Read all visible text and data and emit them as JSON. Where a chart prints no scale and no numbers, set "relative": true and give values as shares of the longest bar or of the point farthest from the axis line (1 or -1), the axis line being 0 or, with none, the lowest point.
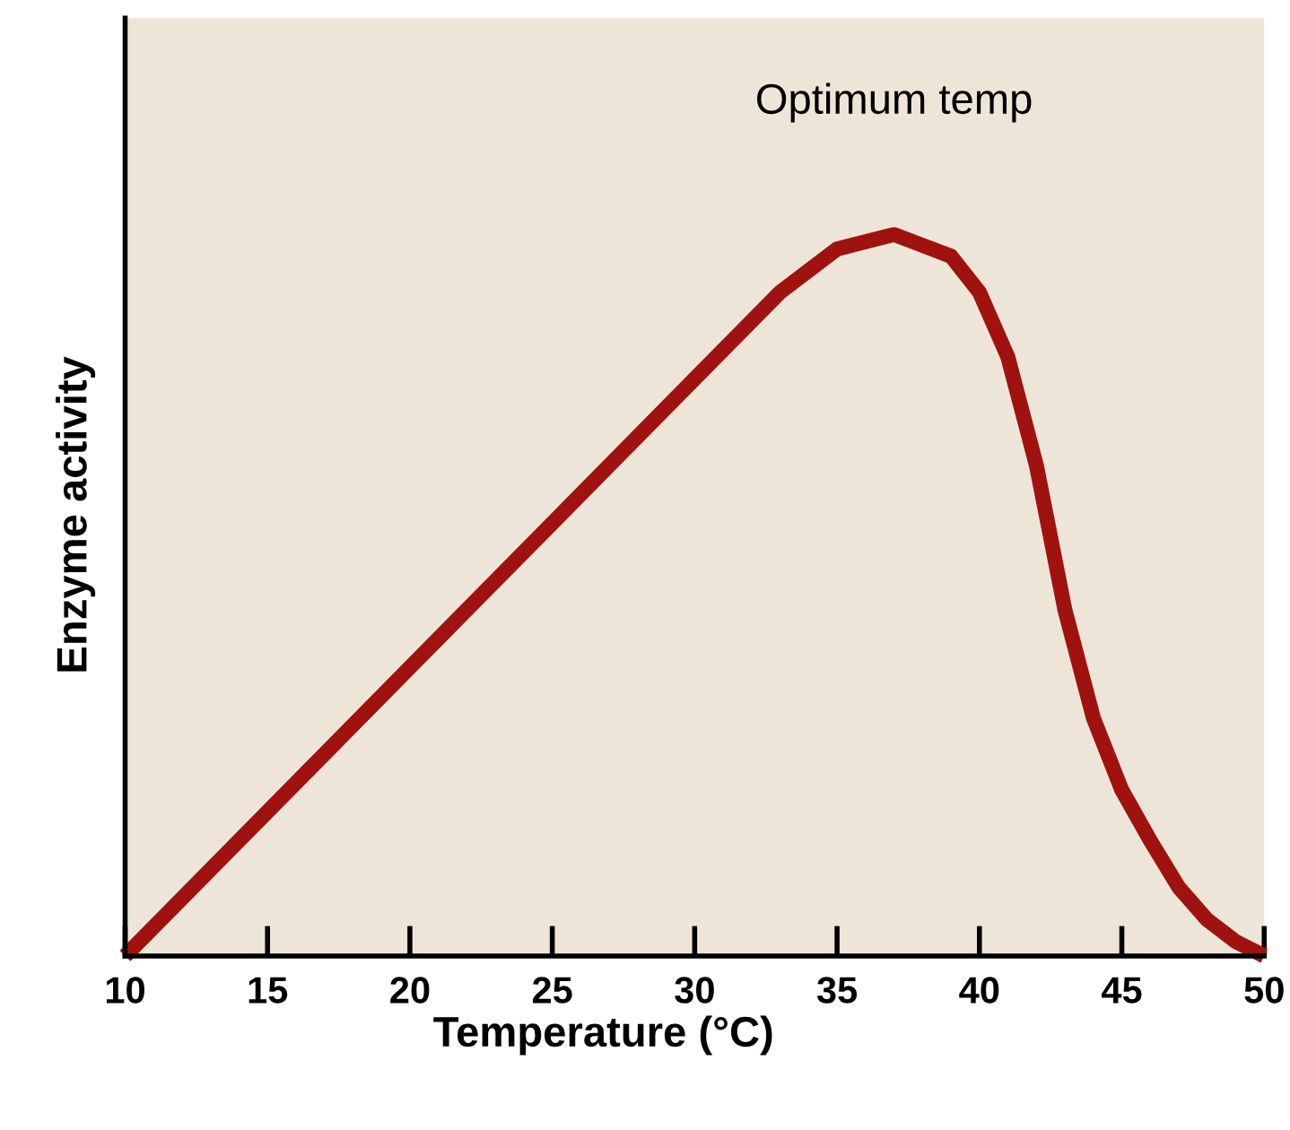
{
  "chart_data": {
    "type": "line",
    "relative": true,
    "xlabel": "Temperature (°C)",
    "ylabel": "Enzyme activity",
    "annotations": [
      {
        "text": "Optimum temp",
        "x": 37,
        "y": 1
      }
    ],
    "x": [
      10,
      15,
      20,
      25,
      30,
      33,
      35,
      37,
      39,
      40,
      41,
      42,
      43,
      44,
      45,
      46,
      47,
      48,
      49,
      50
    ],
    "series": [
      {
        "color": "#a0120f",
        "values": [
          0,
          0.2,
          0.4,
          0.6,
          0.8,
          0.92,
          0.98,
          1.0,
          0.97,
          0.92,
          0.83,
          0.68,
          0.48,
          0.33,
          0.23,
          0.16,
          0.095,
          0.05,
          0.02,
          0
        ]
      }
    ],
    "xlim": [
      10,
      50
    ],
    "xticks": [
      10,
      15,
      20,
      25,
      30,
      35,
      40,
      45,
      50
    ],
    "tick_labels": "x",
    "grid": false,
    "legend": false,
    "marker": "none",
    "line_style": "solid"
  }
}
